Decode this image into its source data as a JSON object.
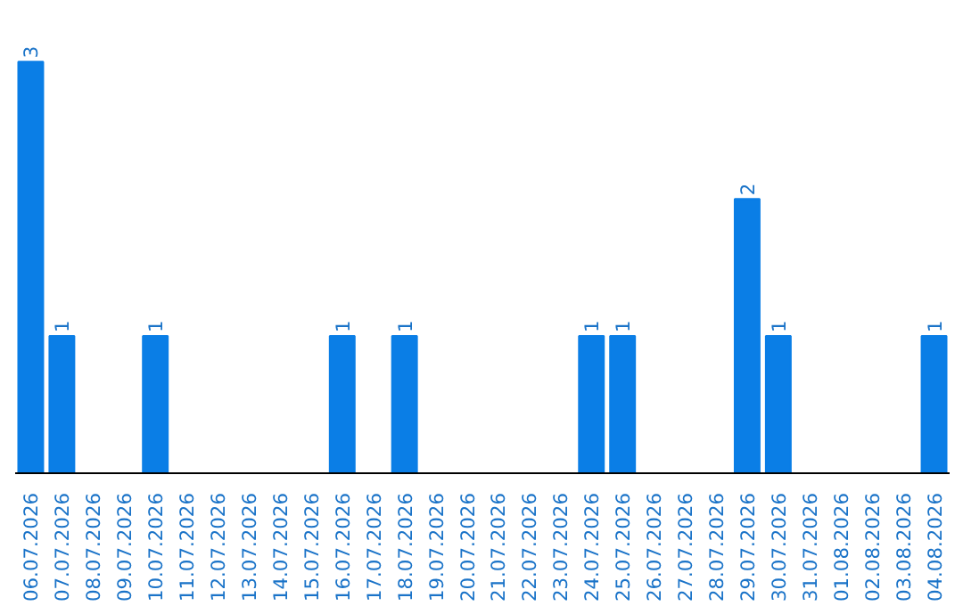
{
  "chart_data": {
    "type": "bar",
    "categories": [
      "06.07.2026",
      "07.07.2026",
      "08.07.2026",
      "09.07.2026",
      "10.07.2026",
      "11.07.2026",
      "12.07.2026",
      "13.07.2026",
      "14.07.2026",
      "15.07.2026",
      "16.07.2026",
      "17.07.2026",
      "18.07.2026",
      "19.07.2026",
      "20.07.2026",
      "21.07.2026",
      "22.07.2026",
      "23.07.2026",
      "24.07.2026",
      "25.07.2026",
      "26.07.2026",
      "27.07.2026",
      "28.07.2026",
      "29.07.2026",
      "30.07.2026",
      "31.07.2026",
      "01.08.2026",
      "02.08.2026",
      "03.08.2026",
      "04.08.2026"
    ],
    "values": [
      3,
      1,
      0,
      0,
      1,
      0,
      0,
      0,
      0,
      0,
      1,
      0,
      1,
      0,
      0,
      0,
      0,
      0,
      1,
      1,
      0,
      0,
      0,
      2,
      1,
      0,
      0,
      0,
      0,
      1
    ],
    "value_labels": [
      "3",
      "1",
      null,
      null,
      "1",
      null,
      null,
      null,
      null,
      null,
      "1",
      null,
      "1",
      null,
      null,
      null,
      null,
      null,
      "1",
      "1",
      null,
      null,
      null,
      "2",
      "1",
      null,
      null,
      null,
      null,
      "1"
    ],
    "color": "#0a7ee6",
    "grid": false
  }
}
